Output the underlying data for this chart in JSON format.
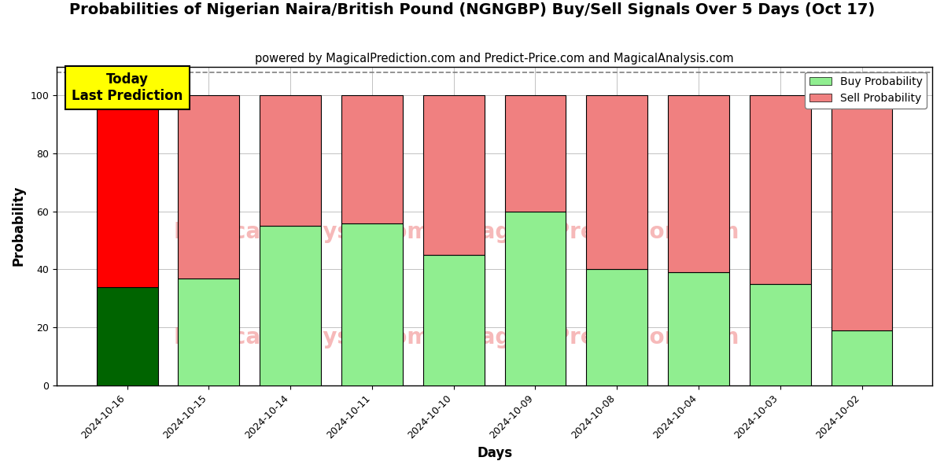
{
  "title": "Probabilities of Nigerian Naira/British Pound (NGNGBP) Buy/Sell Signals Over 5 Days (Oct 17)",
  "subtitle": "powered by MagicalPrediction.com and Predict-Price.com and MagicalAnalysis.com",
  "xlabel": "Days",
  "ylabel": "Probability",
  "categories": [
    "2024-10-16",
    "2024-10-15",
    "2024-10-14",
    "2024-10-11",
    "2024-10-10",
    "2024-10-09",
    "2024-10-08",
    "2024-10-04",
    "2024-10-03",
    "2024-10-02"
  ],
  "buy_values": [
    34,
    37,
    55,
    56,
    45,
    60,
    40,
    39,
    35,
    19
  ],
  "sell_values": [
    66,
    63,
    45,
    44,
    55,
    40,
    60,
    61,
    65,
    81
  ],
  "today_buy_color": "#006400",
  "today_sell_color": "#ff0000",
  "buy_color": "#90EE90",
  "sell_color": "#F08080",
  "today_label_bg": "#ffff00",
  "today_label_text": "Today\nLast Prediction",
  "legend_buy": "Buy Probability",
  "legend_sell": "Sell Probability",
  "ylim": [
    0,
    110
  ],
  "dashed_line_y": 108,
  "background_color": "#ffffff",
  "watermark_color_hex": "#F08080",
  "watermark_alpha": 0.55,
  "grid_color": "#aaaaaa",
  "title_fontsize": 14,
  "subtitle_fontsize": 10.5,
  "axis_label_fontsize": 12,
  "tick_fontsize": 9,
  "bar_width": 0.75
}
